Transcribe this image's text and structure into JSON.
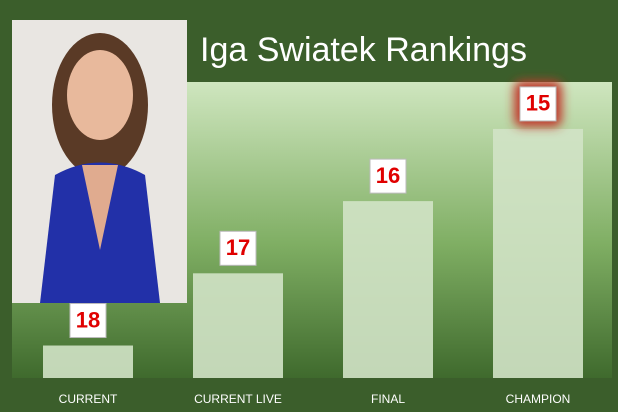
{
  "chart_data": {
    "type": "bar",
    "title": "Iga Swiatek Rankings",
    "categories": [
      "CURRENT",
      "CURRENT LIVE",
      "FINAL",
      "CHAMPION"
    ],
    "values": [
      18,
      17,
      16,
      15
    ],
    "color": "#d2e3c6",
    "ylim": [
      18.45,
      14.35
    ]
  }
}
